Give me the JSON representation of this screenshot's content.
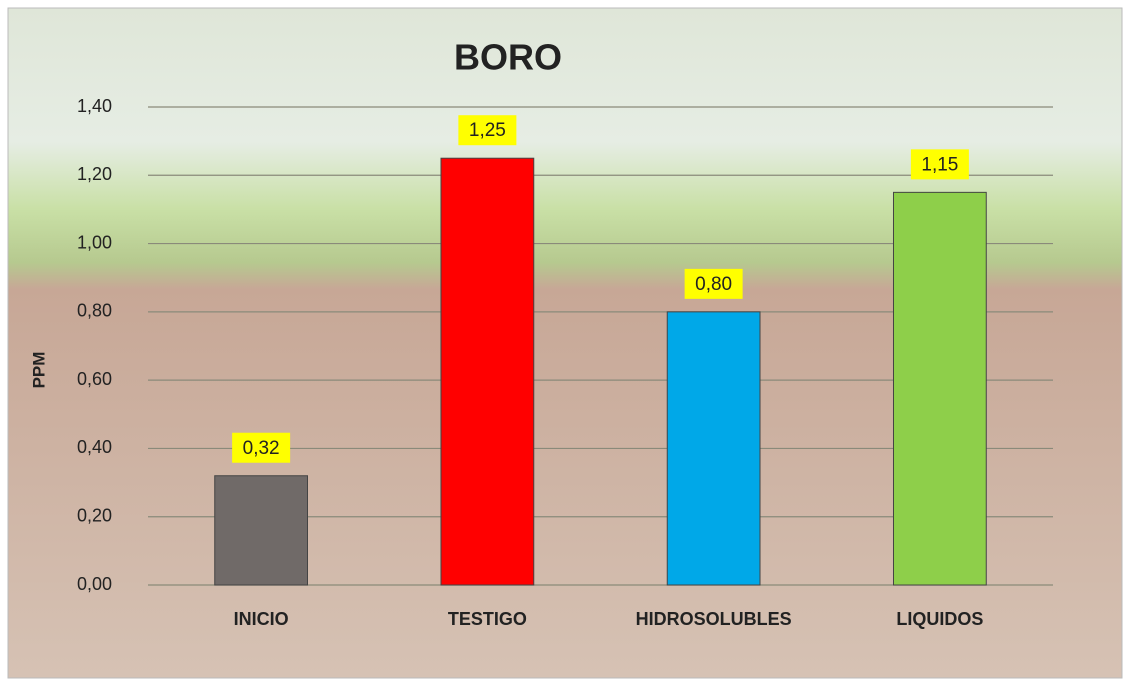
{
  "chart_data": {
    "type": "bar",
    "title": "BORO",
    "y_label": "PPM",
    "categories": [
      "INICIO",
      "TESTIGO",
      "HIDROSOLUBLES",
      "LIQUIDOS"
    ],
    "values": [
      0.32,
      1.25,
      0.8,
      1.15
    ],
    "value_labels": [
      "0,32",
      "1,25",
      "0,80",
      "1,15"
    ],
    "colors": [
      "#706a68",
      "#ff0000",
      "#00a8e8",
      "#8ecf4a"
    ],
    "ylim": [
      0,
      1.4
    ],
    "yticks": [
      {
        "value": 0,
        "label": "0,00"
      },
      {
        "value": 0.2,
        "label": "0,20"
      },
      {
        "value": 0.4,
        "label": "0,40"
      },
      {
        "value": 0.6,
        "label": "0,60"
      },
      {
        "value": 0.8,
        "label": "0,80"
      },
      {
        "value": 1.0,
        "label": "1,00"
      },
      {
        "value": 1.2,
        "label": "1,20"
      },
      {
        "value": 1.4,
        "label": "1,40"
      }
    ],
    "grid": true
  }
}
